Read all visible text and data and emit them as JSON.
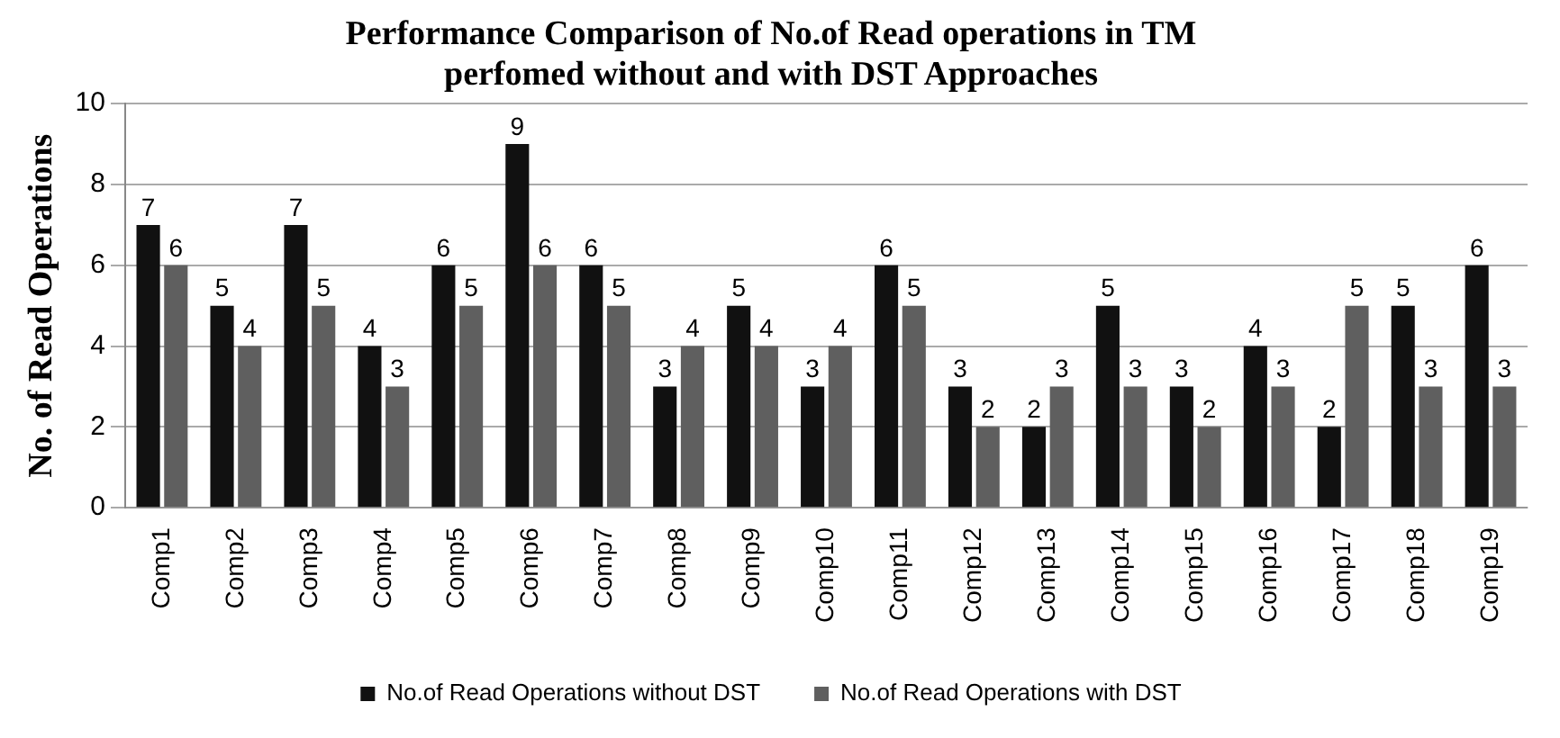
{
  "chart_data": {
    "type": "bar",
    "title": "Performance Comparison of No.of Read operations in TM\nperfomed without and with DST Approaches",
    "ylabel": "No. of Read Operations",
    "categories": [
      "Comp1",
      "Comp2",
      "Comp3",
      "Comp4",
      "Comp5",
      "Comp6",
      "Comp7",
      "Comp8",
      "Comp9",
      "Comp10",
      "Comp11",
      "Comp12",
      "Comp13",
      "Comp14",
      "Comp15",
      "Comp16",
      "Comp17",
      "Comp18",
      "Comp19"
    ],
    "series": [
      {
        "name": "No.of Read Operations without DST",
        "color": "#111111",
        "values": [
          7,
          5,
          7,
          4,
          6,
          9,
          6,
          3,
          5,
          3,
          6,
          3,
          2,
          5,
          3,
          4,
          2,
          5,
          6
        ]
      },
      {
        "name": "No.of Read Operations with DST",
        "color": "#5f5f5f",
        "values": [
          6,
          4,
          5,
          3,
          5,
          6,
          5,
          4,
          4,
          4,
          5,
          2,
          3,
          3,
          2,
          3,
          5,
          3,
          3
        ]
      }
    ],
    "ylim": [
      0,
      10
    ],
    "yticks": [
      0,
      2,
      4,
      6,
      8,
      10
    ],
    "grid": "y",
    "legend": "bottom",
    "data_labels": true
  }
}
